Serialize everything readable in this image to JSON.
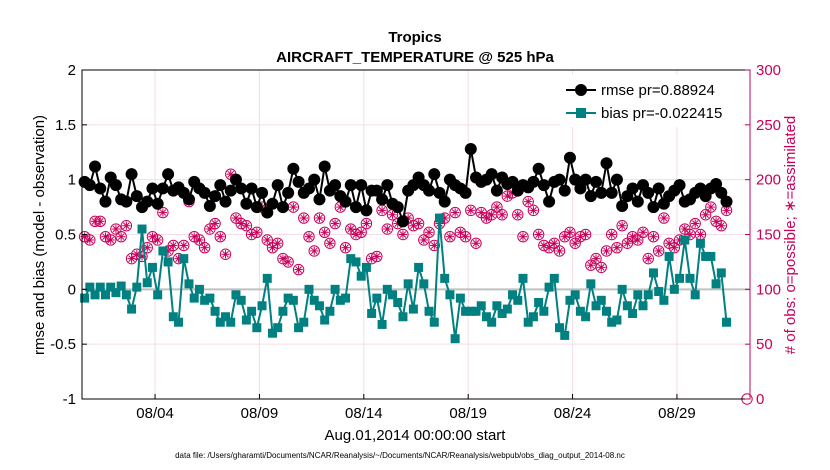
{
  "chart_data": {
    "type": "line",
    "title": "Tropics",
    "subtitle": "AIRCRAFT_TEMPERATURE @ 525 hPa",
    "ylabel_left": "rmse and bias (model - observation)",
    "ylabel_right": "# of obs: o=possible; ∗=assimilated",
    "xlabel": "Aug.01,2014 00:00:00 start",
    "footnote": "data file: /Users/gharamti/Documents/NCAR/Reanalysis/~/Documents/NCAR/Reanalysis/webpub/obs_diag_output_2014-08.nc",
    "x_range": [
      0,
      32
    ],
    "ylim_left": [
      -1,
      2
    ],
    "ylim_right": [
      0,
      300
    ],
    "left_ticks": [
      -1,
      -0.5,
      0,
      0.5,
      1,
      1.5,
      2
    ],
    "left_tick_labels": [
      "-1",
      "-0.5",
      "0",
      "0.5",
      "1",
      "1.5",
      "2"
    ],
    "right_ticks": [
      0,
      50,
      100,
      150,
      200,
      250,
      300
    ],
    "right_tick_labels": [
      "0",
      "50",
      "100",
      "150",
      "200",
      "250",
      "300"
    ],
    "x_ticks": [
      3.5,
      8.5,
      13.5,
      18.5,
      23.5,
      28.5
    ],
    "x_tick_labels": [
      "08/04",
      "08/09",
      "08/14",
      "08/19",
      "08/24",
      "08/29"
    ],
    "grid": true,
    "legend": {
      "position": "top-right",
      "entries": [
        "rmse pr=0.88924",
        "bias pr=-0.022415"
      ]
    },
    "colors": {
      "rmse": "#000000",
      "bias": "#008080",
      "obs": "#c8005a",
      "zero_line": "#c0c0c0",
      "grid": "#f3dde8"
    },
    "n_steps": 124,
    "step_days": 0.25,
    "series": [
      {
        "name": "rmse pr=0.88924",
        "axis": "left",
        "marker": "circle",
        "values": [
          0.98,
          0.95,
          1.12,
          0.92,
          0.8,
          1.02,
          0.95,
          0.82,
          0.8,
          1.05,
          0.85,
          0.75,
          0.8,
          0.92,
          0.78,
          0.92,
          1.05,
          0.9,
          0.93,
          0.88,
          0.82,
          0.98,
          0.92,
          0.88,
          0.76,
          0.85,
          0.95,
          0.8,
          0.9,
          1.0,
          0.92,
          0.78,
          0.92,
          0.75,
          0.88,
          0.7,
          0.78,
          0.95,
          0.75,
          0.88,
          1.1,
          0.98,
          0.88,
          0.92,
          1.0,
          0.82,
          1.12,
          0.9,
          0.95,
          0.85,
          0.8,
          0.95,
          0.75,
          0.95,
          0.72,
          0.9,
          0.9,
          0.82,
          0.95,
          0.78,
          0.75,
          0.62,
          0.9,
          0.95,
          1.02,
          0.95,
          0.9,
          1.05,
          0.88,
          0.8,
          1.0,
          0.95,
          0.92,
          0.88,
          1.28,
          1.02,
          0.98,
          1.0,
          1.05,
          0.9,
          1.02,
          0.96,
          0.98,
          0.9,
          0.95,
          0.93,
          0.98,
          1.1,
          0.95,
          0.8,
          0.98,
          1.0,
          0.9,
          1.2,
          1.0,
          0.92,
          1.0,
          0.85,
          0.98,
          0.88,
          1.15,
          0.88,
          1.0,
          0.76,
          0.85,
          0.92,
          0.8,
          0.95,
          0.88,
          0.75,
          0.92,
          0.78,
          0.85,
          0.9,
          0.95,
          0.8,
          0.82,
          0.88,
          0.92,
          0.85,
          0.92,
          0.96,
          0.88,
          0.8
        ]
      },
      {
        "name": "bias pr=-0.022415",
        "axis": "left",
        "marker": "square",
        "values": [
          -0.08,
          0.02,
          -0.05,
          0.02,
          -0.05,
          0.02,
          -0.03,
          0.03,
          -0.05,
          -0.18,
          0.02,
          0.55,
          0.06,
          0.2,
          -0.05,
          0.35,
          0.25,
          -0.25,
          -0.3,
          0.28,
          0.05,
          -0.08,
          0.0,
          -0.1,
          -0.08,
          -0.2,
          -0.3,
          -0.25,
          -0.3,
          -0.05,
          -0.1,
          -0.28,
          -0.2,
          -0.35,
          -0.15,
          0.1,
          -0.4,
          -0.35,
          -0.2,
          -0.08,
          -0.1,
          -0.35,
          -0.3,
          0.0,
          -0.1,
          -0.15,
          -0.28,
          -0.2,
          0.0,
          -0.1,
          -0.08,
          0.28,
          0.25,
          0.12,
          0.2,
          -0.22,
          -0.08,
          -0.32,
          0.0,
          -0.05,
          -0.12,
          -0.25,
          0.05,
          -0.18,
          0.2,
          0.05,
          -0.2,
          -0.3,
          0.65,
          0.1,
          -0.05,
          -0.45,
          -0.08,
          -0.2,
          -0.2,
          -0.2,
          -0.15,
          -0.25,
          -0.3,
          -0.15,
          -0.22,
          -0.18,
          -0.05,
          -0.1,
          0.1,
          -0.3,
          -0.25,
          -0.12,
          -0.2,
          0.02,
          0.1,
          -0.35,
          -0.42,
          -0.1,
          -0.05,
          -0.2,
          -0.25,
          0.05,
          -0.15,
          -0.1,
          -0.2,
          -0.3,
          -0.28,
          0.0,
          -0.15,
          -0.22,
          -0.05,
          -0.15,
          -0.05,
          0.15,
          -0.02,
          -0.1,
          0.3,
          0.0,
          0.1,
          0.45,
          0.1,
          -0.05,
          0.42,
          0.3,
          0.3,
          0.05,
          0.15,
          -0.3
        ]
      },
      {
        "name": "obs possible",
        "axis": "right",
        "marker": "circle-open",
        "values": [
          148,
          145,
          162,
          162,
          148,
          145,
          155,
          148,
          158,
          128,
          132,
          130,
          138,
          148,
          145,
          170,
          135,
          140,
          128,
          140,
          180,
          148,
          145,
          138,
          155,
          160,
          148,
          132,
          205,
          165,
          160,
          158,
          150,
          152,
          175,
          145,
          138,
          142,
          128,
          125,
          175,
          118,
          165,
          148,
          135,
          165,
          152,
          142,
          160,
          175,
          138,
          155,
          150,
          152,
          160,
          128,
          130,
          172,
          155,
          168,
          160,
          150,
          165,
          158,
          160,
          145,
          152,
          140,
          160,
          165,
          148,
          170,
          152,
          148,
          172,
          142,
          170,
          165,
          168,
          175,
          168,
          185,
          188,
          168,
          148,
          180,
          172,
          150,
          140,
          138,
          142,
          135,
          148,
          152,
          142,
          148,
          150,
          122,
          128,
          120,
          135,
          150,
          138,
          158,
          142,
          148,
          145,
          152,
          128,
          148,
          135,
          165,
          142,
          138,
          145,
          155,
          150,
          160,
          150,
          168,
          175,
          162,
          158,
          172
        ]
      },
      {
        "name": "obs assimilated",
        "axis": "right",
        "marker": "asterisk",
        "values": [
          148,
          145,
          162,
          162,
          148,
          145,
          155,
          148,
          158,
          128,
          132,
          130,
          138,
          148,
          145,
          170,
          135,
          140,
          128,
          140,
          180,
          148,
          145,
          138,
          155,
          160,
          148,
          132,
          205,
          165,
          160,
          158,
          150,
          152,
          175,
          145,
          138,
          142,
          128,
          125,
          175,
          118,
          165,
          148,
          135,
          165,
          152,
          142,
          160,
          175,
          138,
          155,
          150,
          152,
          160,
          128,
          130,
          172,
          155,
          168,
          160,
          150,
          165,
          158,
          160,
          145,
          152,
          140,
          160,
          165,
          148,
          170,
          152,
          148,
          172,
          142,
          170,
          165,
          168,
          175,
          168,
          185,
          188,
          168,
          148,
          180,
          172,
          150,
          140,
          138,
          142,
          135,
          148,
          152,
          142,
          148,
          150,
          122,
          128,
          120,
          135,
          150,
          138,
          158,
          142,
          148,
          145,
          152,
          128,
          148,
          135,
          165,
          142,
          138,
          145,
          155,
          150,
          160,
          150,
          168,
          175,
          162,
          158,
          172
        ]
      }
    ]
  }
}
